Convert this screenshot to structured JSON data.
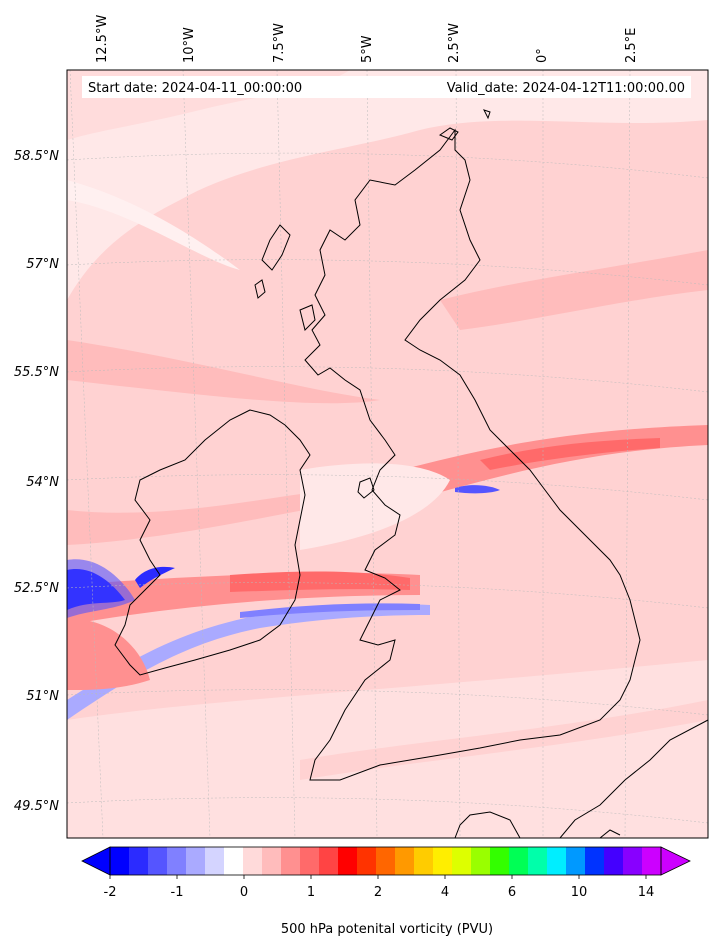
{
  "map": {
    "start_date_text": "Start date: 2024-04-11_00:00:00",
    "valid_date_text": "Valid_date: 2024-04-12T11:00:00.00",
    "longitude_labels": [
      "12.5°W",
      "10°W",
      "7.5°W",
      "5°W",
      "2.5°W",
      "0°",
      "2.5°E"
    ],
    "latitude_labels": [
      "58.5°N",
      "57°N",
      "55.5°N",
      "54°N",
      "52.5°N",
      "51°N",
      "49.5°N"
    ],
    "background_color": "#ffd2d2",
    "coastline_color": "#000000"
  },
  "colorbar": {
    "label": "500 hPa potenital vorticity (PVU)",
    "tick_labels": [
      "-2",
      "-1",
      "0",
      "1",
      "2",
      "4",
      "6",
      "10",
      "14"
    ],
    "colors": [
      "#0000ff",
      "#2b2bff",
      "#5555ff",
      "#8080ff",
      "#aaaaff",
      "#d4d4ff",
      "#ffffff",
      "#ffdada",
      "#ffbcbc",
      "#ff9090",
      "#ff6a6a",
      "#ff4444",
      "#ff0000",
      "#ff3300",
      "#ff6600",
      "#ff9900",
      "#ffcc00",
      "#ffee00",
      "#ddff00",
      "#99ff00",
      "#33ff00",
      "#00ff55",
      "#00ffaa",
      "#00eeff",
      "#0099ff",
      "#0033ff",
      "#4400ff",
      "#8800ff",
      "#cc00ff"
    ],
    "extend_min_color": "#0000ff",
    "extend_max_color": "#cc00ff"
  }
}
